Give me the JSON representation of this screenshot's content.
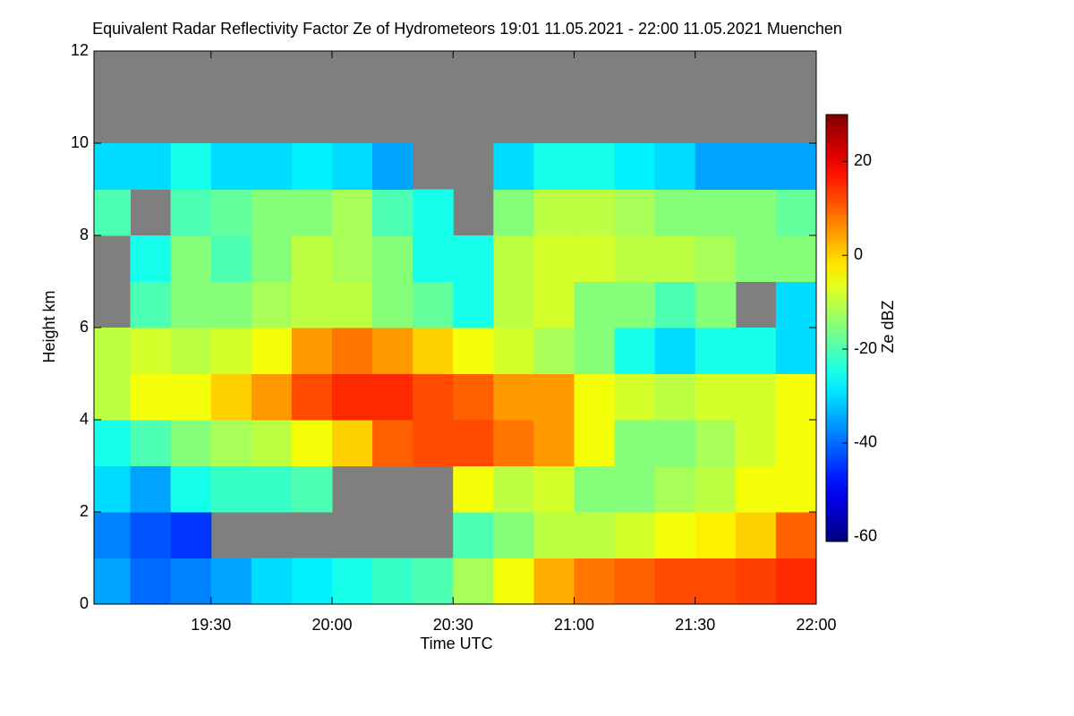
{
  "chart_data": {
    "type": "heatmap",
    "title": "Equivalent Radar Reflectivity Factor Ze of Hydrometeors   19:01 11.05.2021 - 22:00 11.05.2021 Muenchen",
    "x_label": "Time UTC",
    "y_label": "Height km",
    "colorbar_label": "Ze dBZ",
    "colormap": "jet",
    "missing_color": "#7f7f7f",
    "xbins": [
      19.0167,
      19.1667,
      19.3333,
      19.5,
      19.6667,
      19.8333,
      20,
      20.1667,
      20.3333,
      20.5,
      20.6667,
      20.8333,
      21,
      21.1667,
      21.3333,
      21.5,
      21.6667,
      21.8333,
      22
    ],
    "ybins": [
      0,
      1,
      2,
      3,
      4,
      5,
      6,
      7,
      8,
      9,
      10,
      11,
      12
    ],
    "z": [
      [
        -35,
        -40,
        -38,
        -35,
        -30,
        -28,
        -25,
        -22,
        -20,
        -12,
        -5,
        3,
        8,
        10,
        12,
        12,
        13,
        15
      ],
      [
        -38,
        -42,
        -45,
        null,
        null,
        null,
        null,
        null,
        null,
        -20,
        -15,
        -10,
        -10,
        -8,
        -5,
        -3,
        0,
        10
      ],
      [
        -30,
        -35,
        -25,
        -22,
        -22,
        -20,
        null,
        null,
        null,
        -5,
        -10,
        -8,
        -15,
        -15,
        -12,
        -10,
        -5,
        -5
      ],
      [
        -25,
        -20,
        -15,
        -12,
        -10,
        -5,
        0,
        10,
        12,
        12,
        8,
        5,
        -5,
        -15,
        -15,
        -12,
        -8,
        -5
      ],
      [
        -10,
        -5,
        -5,
        0,
        5,
        12,
        15,
        15,
        12,
        10,
        5,
        5,
        -5,
        -8,
        -10,
        -8,
        -8,
        -5
      ],
      [
        -10,
        -8,
        -10,
        -8,
        -5,
        5,
        8,
        5,
        0,
        -5,
        -8,
        -12,
        -15,
        -25,
        -30,
        -25,
        -25,
        -30
      ],
      [
        null,
        -20,
        -15,
        -15,
        -12,
        -10,
        -10,
        -15,
        -18,
        -25,
        -10,
        -8,
        -15,
        -15,
        -20,
        -15,
        null,
        -30
      ],
      [
        null,
        -25,
        -15,
        -20,
        -15,
        -10,
        -12,
        -15,
        -25,
        -25,
        -10,
        -8,
        -8,
        -10,
        -10,
        -12,
        -15,
        -15
      ],
      [
        -20,
        null,
        -20,
        -18,
        -15,
        -15,
        -12,
        -20,
        -25,
        null,
        -15,
        -10,
        -10,
        -12,
        -15,
        -15,
        -15,
        -18
      ],
      [
        -30,
        -30,
        -25,
        -30,
        -30,
        -28,
        -30,
        -35,
        null,
        null,
        -30,
        -25,
        -25,
        -28,
        -30,
        -35,
        -35,
        -35
      ],
      [
        null,
        null,
        null,
        null,
        null,
        null,
        null,
        null,
        null,
        null,
        null,
        null,
        null,
        null,
        null,
        null,
        null,
        null
      ],
      [
        null,
        null,
        null,
        null,
        null,
        null,
        null,
        null,
        null,
        null,
        null,
        null,
        null,
        null,
        null,
        null,
        null,
        null
      ]
    ],
    "xlim": [
      19.0167,
      22
    ],
    "xticks": [
      {
        "value": 19.5,
        "label": "19:30"
      },
      {
        "value": 20,
        "label": "20:00"
      },
      {
        "value": 20.5,
        "label": "20:30"
      },
      {
        "value": 21,
        "label": "21:00"
      },
      {
        "value": 21.5,
        "label": "21:30"
      },
      {
        "value": 22,
        "label": "22:00"
      }
    ],
    "ylim": [
      0,
      12
    ],
    "yticks": [
      0,
      2,
      4,
      6,
      8,
      10,
      12
    ],
    "clim": [
      -61,
      30
    ],
    "cticks": [
      -60,
      -40,
      -20,
      0,
      20
    ]
  }
}
